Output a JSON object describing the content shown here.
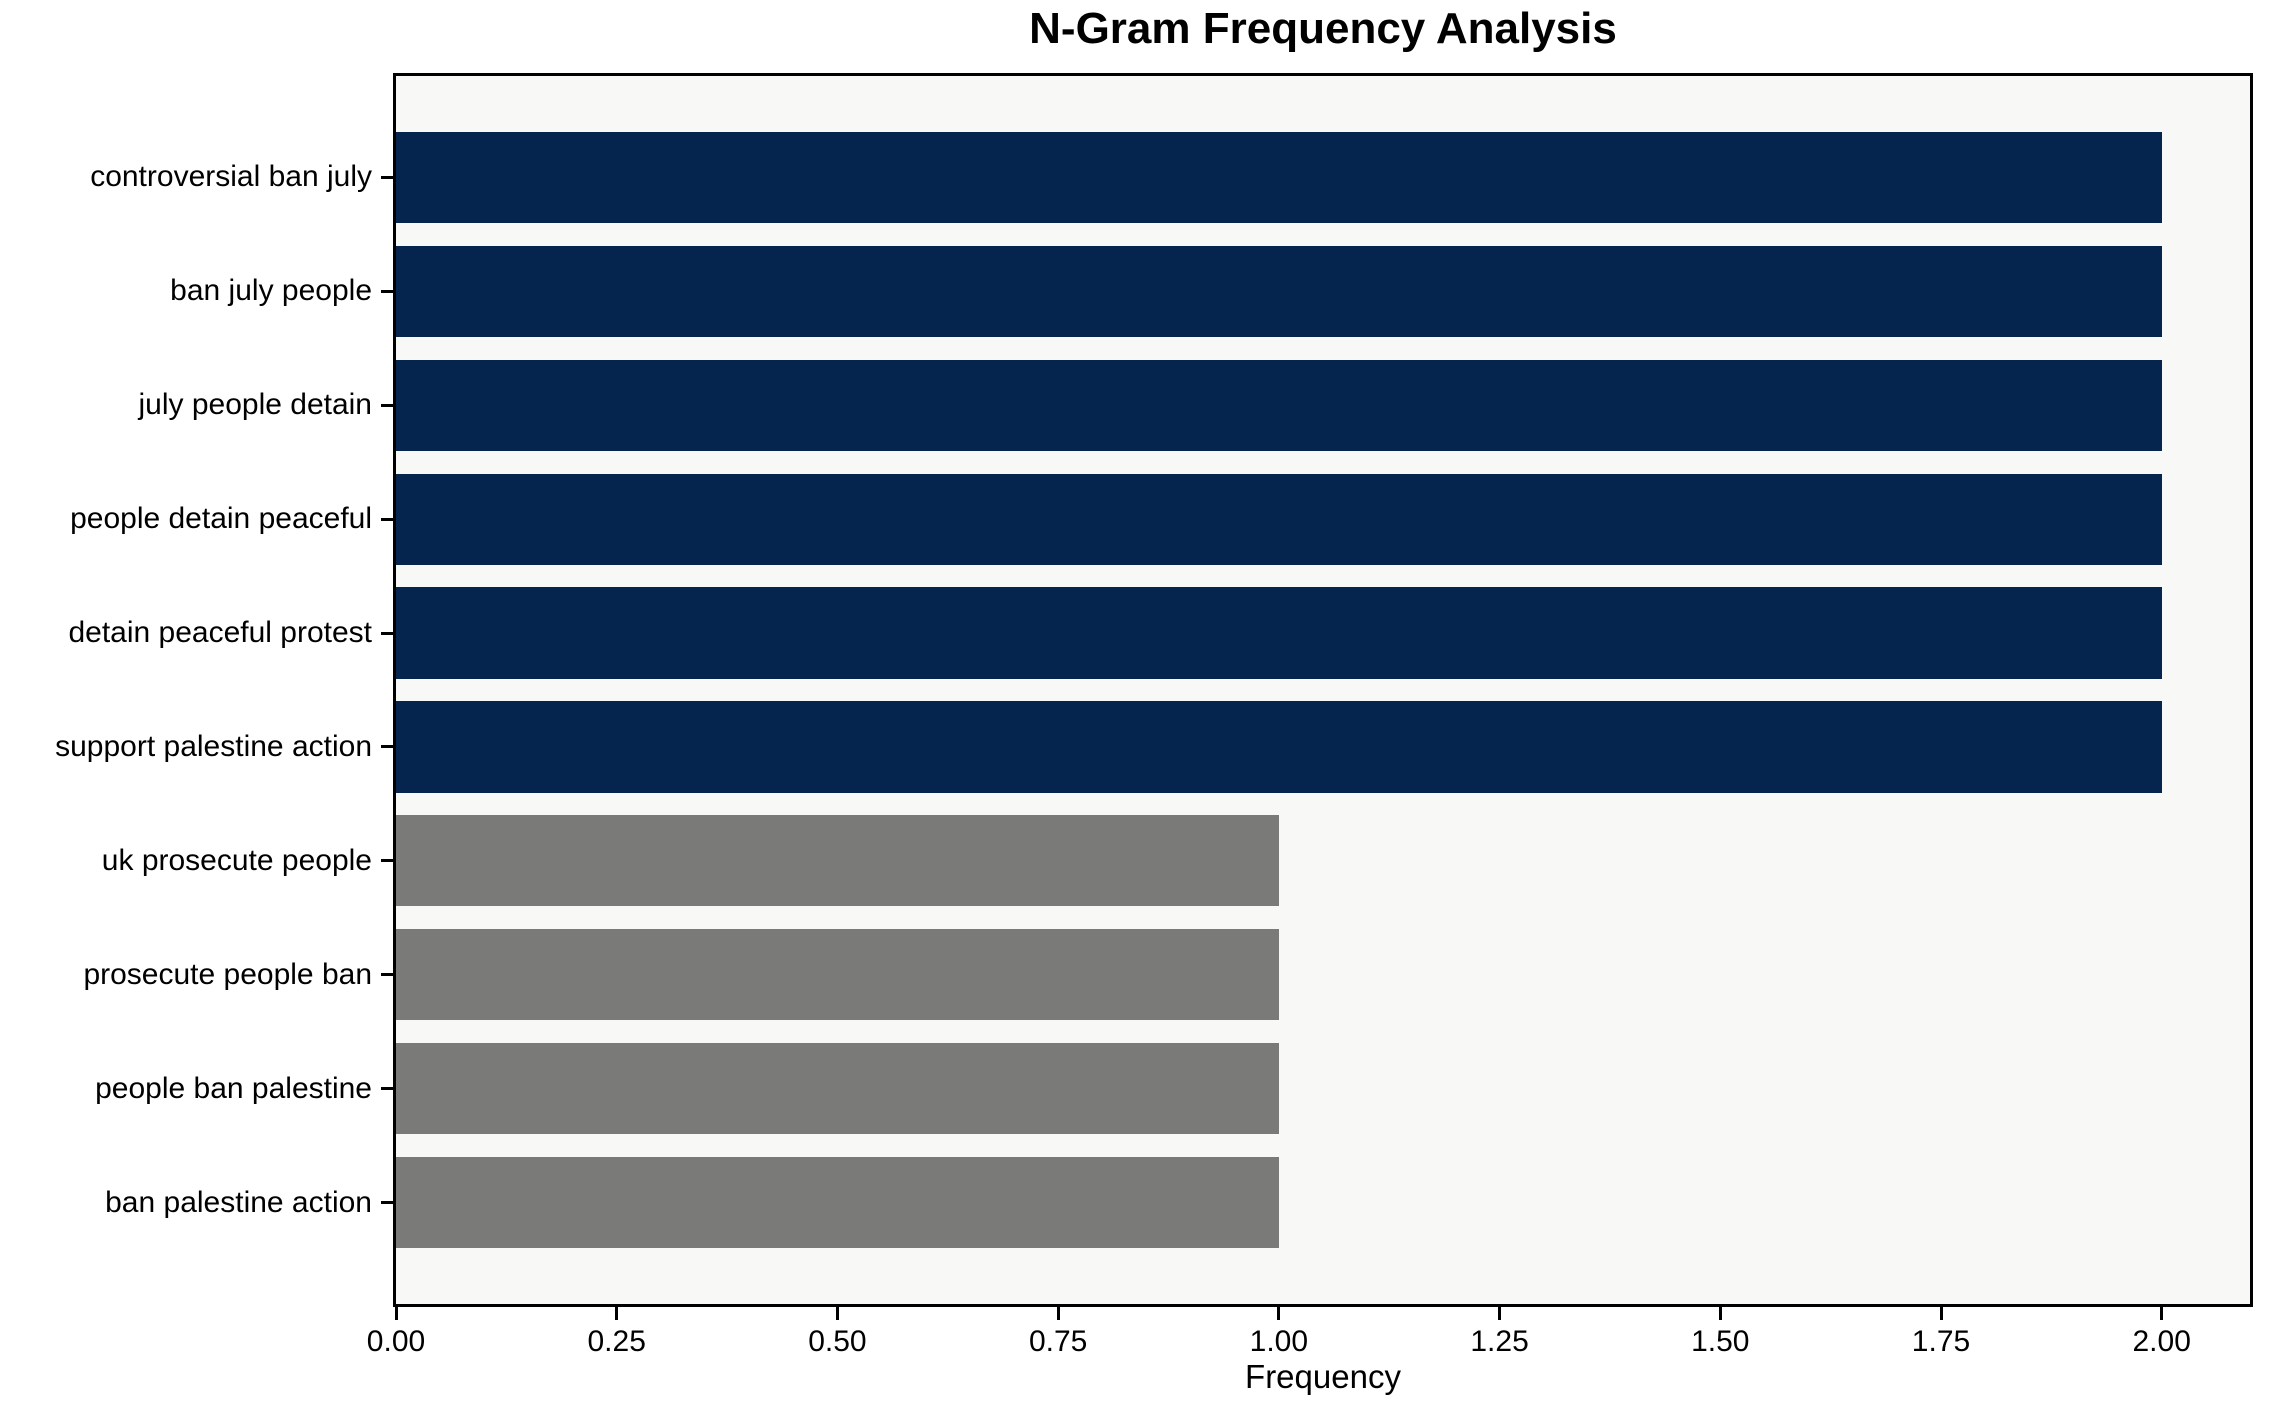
{
  "chart_data": {
    "type": "bar",
    "orientation": "horizontal",
    "title": "N-Gram Frequency Analysis",
    "xlabel": "Frequency",
    "ylabel": "",
    "categories": [
      "controversial ban july",
      "ban july people",
      "july people detain",
      "people detain peaceful",
      "detain peaceful protest",
      "support palestine action",
      "uk prosecute people",
      "prosecute people ban",
      "people ban palestine",
      "ban palestine action"
    ],
    "values": [
      2,
      2,
      2,
      2,
      2,
      2,
      1,
      1,
      1,
      1
    ],
    "bar_colors": [
      "#05244e",
      "#05244e",
      "#05244e",
      "#05244e",
      "#05244e",
      "#05244e",
      "#7a7a78",
      "#7a7a78",
      "#7a7a78",
      "#7a7a78"
    ],
    "xlim": [
      0,
      2.1
    ],
    "x_ticks": [
      {
        "value": 0.0,
        "label": "0.00"
      },
      {
        "value": 0.25,
        "label": "0.25"
      },
      {
        "value": 0.5,
        "label": "0.50"
      },
      {
        "value": 0.75,
        "label": "0.75"
      },
      {
        "value": 1.0,
        "label": "1.00"
      },
      {
        "value": 1.25,
        "label": "1.25"
      },
      {
        "value": 1.5,
        "label": "1.50"
      },
      {
        "value": 1.75,
        "label": "1.75"
      },
      {
        "value": 2.0,
        "label": "2.00"
      }
    ],
    "grid": false,
    "legend": null,
    "colors": {
      "high_frequency_bar": "#05244e",
      "low_frequency_bar": "#7a7a78",
      "plot_background": "#f8f8f7",
      "figure_background": "#ffffff",
      "axis": "#000000",
      "text": "#000000"
    }
  }
}
